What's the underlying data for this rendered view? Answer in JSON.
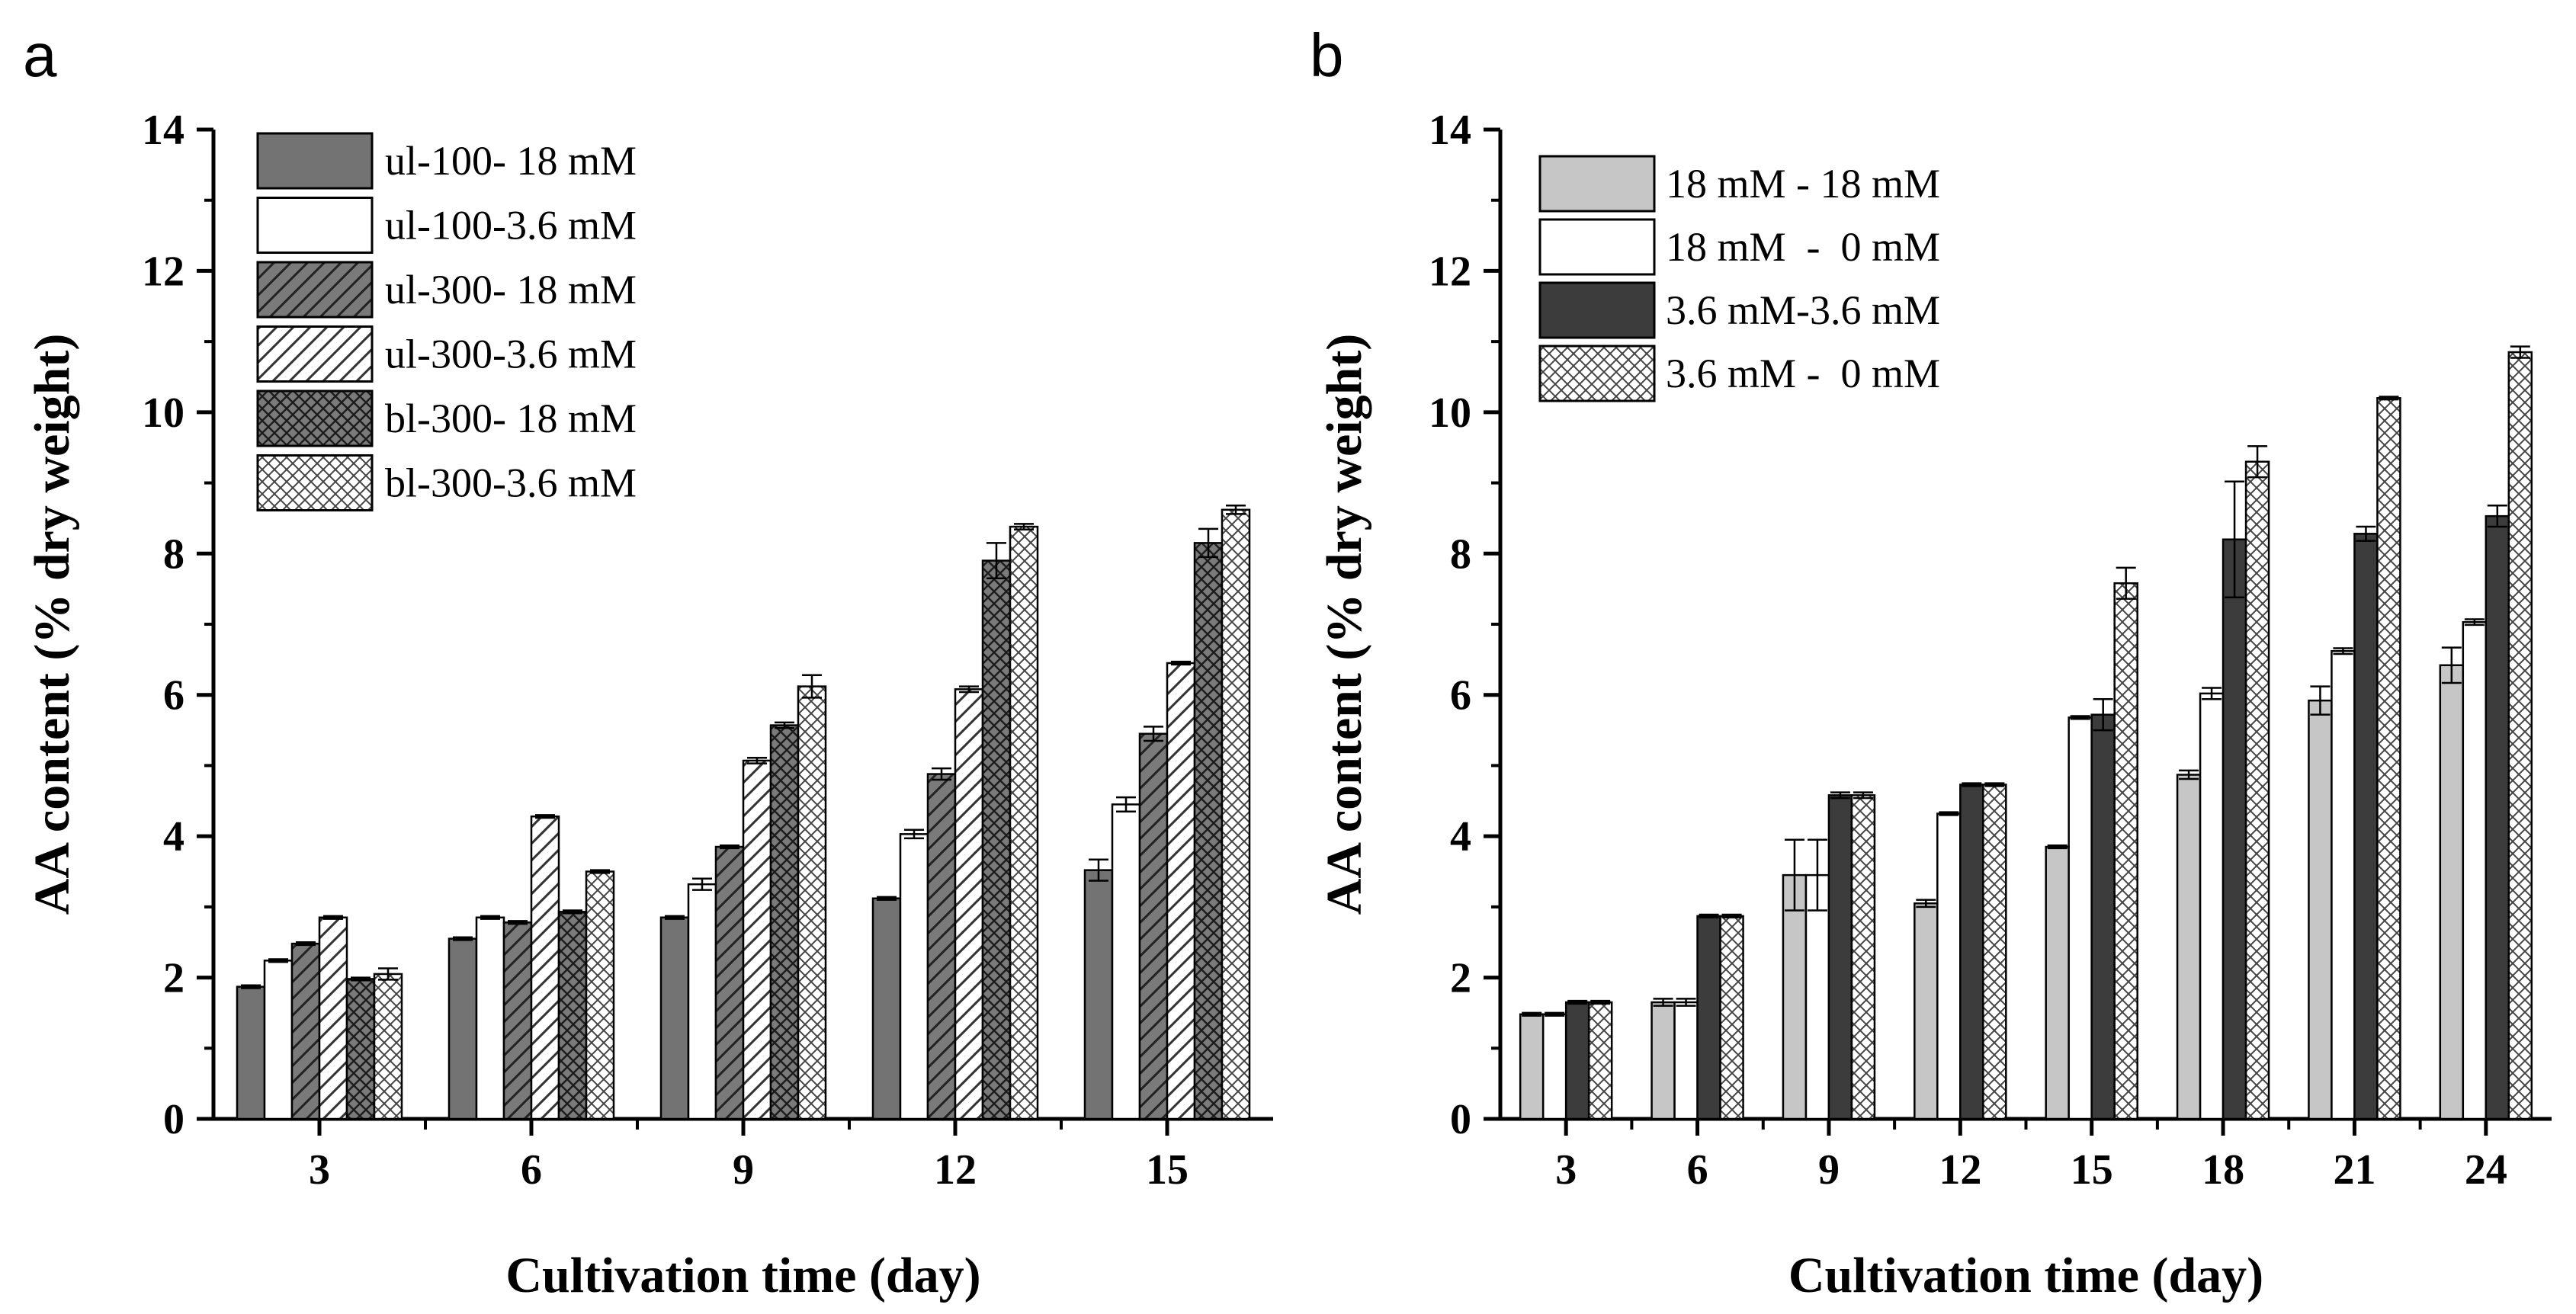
{
  "chart_data": [
    {
      "panel": "a",
      "type": "bar",
      "xlabel": "Cultivation time (day)",
      "ylabel": "AA content (% dry weight)",
      "ylim": [
        0,
        14
      ],
      "yticks": [
        0,
        2,
        4,
        6,
        8,
        10,
        12,
        14
      ],
      "categories": [
        "3",
        "6",
        "9",
        "12",
        "15"
      ],
      "legend_position": "top-left",
      "grid": false,
      "series": [
        {
          "name": "ul-100- 18 mM",
          "fill": "solid-mid-gray",
          "values": [
            1.87,
            2.55,
            2.85,
            3.12,
            3.52
          ],
          "errors": [
            0.02,
            0.02,
            0.02,
            0.02,
            0.15
          ]
        },
        {
          "name": "ul-100-3.6 mM",
          "fill": "white",
          "values": [
            2.24,
            2.85,
            3.32,
            4.03,
            4.45
          ],
          "errors": [
            0.02,
            0.02,
            0.08,
            0.06,
            0.1
          ]
        },
        {
          "name": "ul-300- 18 mM",
          "fill": "dark-gray-diagonal",
          "values": [
            2.48,
            2.78,
            3.85,
            4.88,
            5.45
          ],
          "errors": [
            0.02,
            0.02,
            0.02,
            0.08,
            0.1
          ]
        },
        {
          "name": "ul-300-3.6 mM",
          "fill": "white-diagonal",
          "values": [
            2.85,
            4.28,
            5.07,
            6.08,
            6.45
          ],
          "errors": [
            0.02,
            0.02,
            0.04,
            0.04,
            0.02
          ]
        },
        {
          "name": "bl-300- 18 mM",
          "fill": "dark-gray-crosshatch",
          "values": [
            1.98,
            2.93,
            5.57,
            7.9,
            8.15
          ],
          "errors": [
            0.02,
            0.02,
            0.04,
            0.25,
            0.2
          ]
        },
        {
          "name": "bl-300-3.6 mM",
          "fill": "white-crosshatch",
          "values": [
            2.05,
            3.5,
            6.12,
            8.38,
            8.62
          ],
          "errors": [
            0.08,
            0.02,
            0.16,
            0.04,
            0.06
          ]
        }
      ]
    },
    {
      "panel": "b",
      "type": "bar",
      "xlabel": "Cultivation time (day)",
      "ylabel": "AA content (% dry weight)",
      "ylim": [
        0,
        14
      ],
      "yticks": [
        0,
        2,
        4,
        6,
        8,
        10,
        12,
        14
      ],
      "categories": [
        "3",
        "6",
        "9",
        "12",
        "15",
        "18",
        "21",
        "24"
      ],
      "legend_position": "top-left",
      "grid": false,
      "series": [
        {
          "name": "18 mM - 18 mM",
          "fill": "solid-light-gray",
          "values": [
            1.48,
            1.65,
            3.45,
            3.05,
            3.85,
            4.87,
            5.92,
            6.42
          ],
          "errors": [
            0.02,
            0.05,
            0.5,
            0.05,
            0.02,
            0.06,
            0.2,
            0.25
          ]
        },
        {
          "name": "18 mM  -  0 mM",
          "fill": "white",
          "values": [
            1.48,
            1.65,
            3.45,
            4.32,
            5.68,
            6.02,
            6.62,
            7.03
          ],
          "errors": [
            0.02,
            0.05,
            0.5,
            0.02,
            0.02,
            0.08,
            0.04,
            0.04
          ]
        },
        {
          "name": "3.6 mM-3.6 mM",
          "fill": "solid-dark-gray",
          "values": [
            1.65,
            2.87,
            4.58,
            4.73,
            5.72,
            8.2,
            8.28,
            8.53
          ],
          "errors": [
            0.02,
            0.02,
            0.04,
            0.02,
            0.22,
            0.82,
            0.1,
            0.15
          ]
        },
        {
          "name": "3.6 mM -  0 mM",
          "fill": "white-crosshatch",
          "values": [
            1.65,
            2.87,
            4.58,
            4.73,
            7.58,
            9.3,
            10.2,
            10.85
          ],
          "errors": [
            0.02,
            0.02,
            0.04,
            0.02,
            0.22,
            0.22,
            0.02,
            0.08
          ]
        }
      ]
    }
  ],
  "colors": {
    "axis": "#000000",
    "solid-mid-gray": "#737373",
    "solid-light-gray": "#c6c6c6",
    "solid-dark-gray": "#3c3c3c",
    "dark-gray-hatch-bg": "#7a7a7a",
    "white": "#ffffff"
  }
}
